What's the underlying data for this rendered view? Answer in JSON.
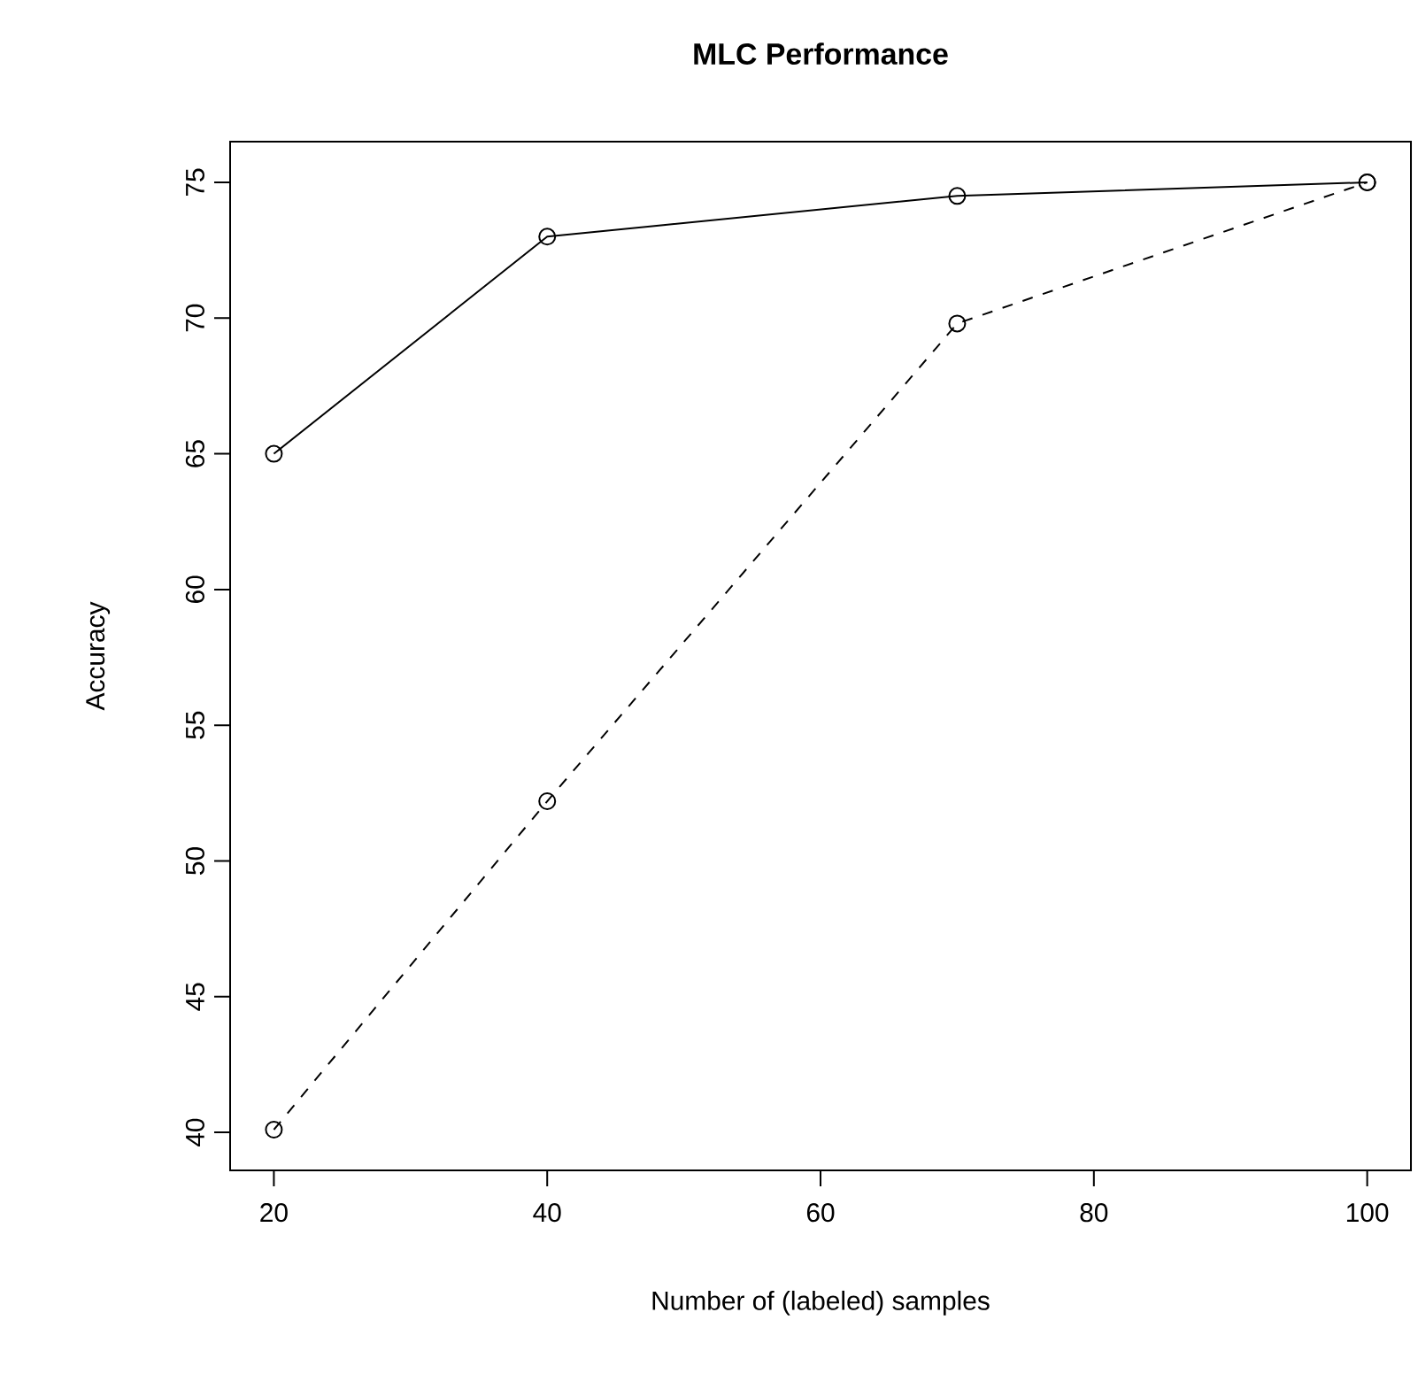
{
  "chart_data": {
    "type": "line",
    "title": "**MLC Performance**",
    "xlabel": "Number of (labeled) samples",
    "ylabel": "Accuracy",
    "x": [
      20,
      40,
      70,
      100
    ],
    "series": [
      {
        "color": "#000000",
        "line_style": "solid",
        "values": [
          65,
          73,
          74.5,
          75
        ]
      },
      {
        "color": "#000000",
        "line_style": "dashed",
        "values": [
          40.1,
          52.2,
          69.8,
          75
        ]
      }
    ],
    "marker": "circle",
    "xlim": [
      16.8,
      103.2
    ],
    "ylim": [
      38.6,
      76.5
    ],
    "xticks": [
      20,
      40,
      60,
      80,
      100
    ],
    "yticks": [
      40,
      45,
      50,
      55,
      60,
      65,
      70,
      75
    ]
  }
}
